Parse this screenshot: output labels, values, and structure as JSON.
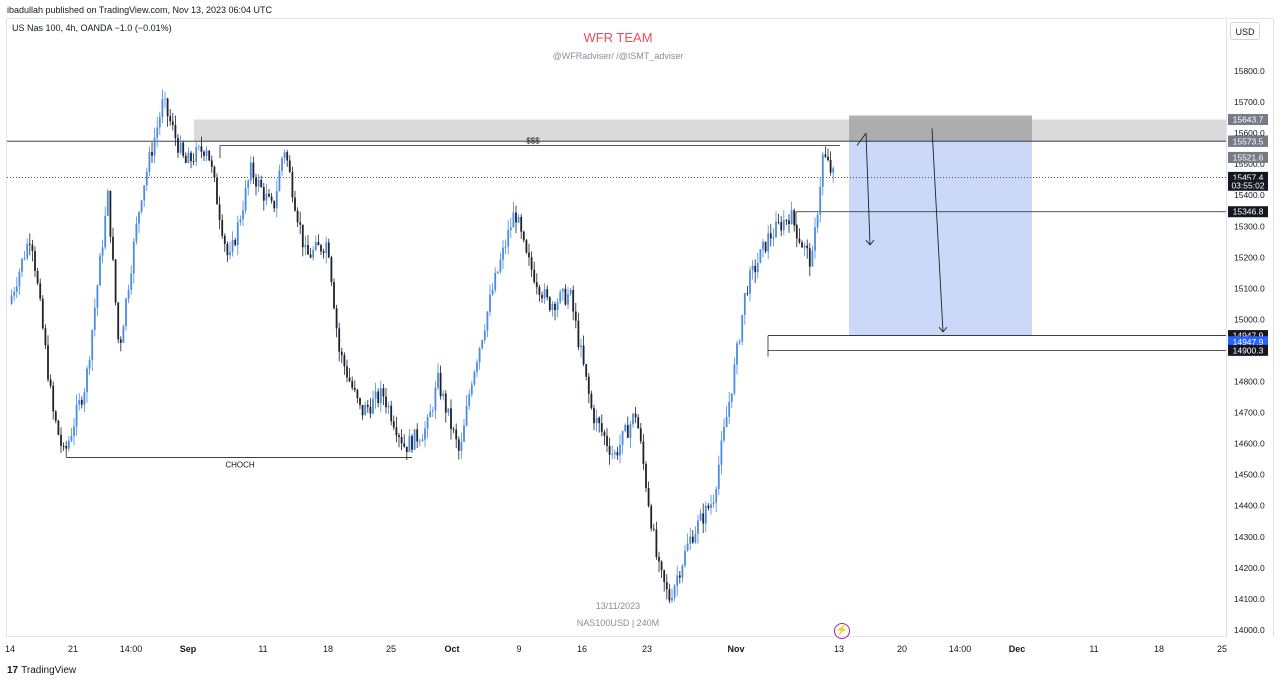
{
  "header": {
    "published": "ibadullah published on TradingView.com, Nov 13, 2023 06:04 UTC",
    "symbol_line": "US Nas 100, 4h, OANDA  −1.0 (−0.01%)"
  },
  "currency_button": "USD",
  "watermark": {
    "title": "WFR TEAM",
    "subtitle": "@WFRadviser/ /@ISMT_adviser",
    "date": "13/11/2023",
    "symbol": "NAS100USD | 240M"
  },
  "footer": {
    "brand": "TradingView",
    "logo_mark": "17"
  },
  "colors": {
    "bull": "#4a8be4",
    "bear": "#1e222d",
    "zone": "#c9d6f8",
    "supply": "#d4d4d4",
    "title": "#ea4d5c"
  },
  "chart_data": {
    "type": "candlestick",
    "timeframe": "4h",
    "ylim": [
      13960,
      15890
    ],
    "y_ticks": [
      15800,
      15700,
      15600,
      15500,
      15400,
      15300,
      15200,
      15100,
      15000,
      14900,
      14800,
      14700,
      14600,
      14500,
      14400,
      14300,
      14200,
      14100,
      14000
    ],
    "x_ticks": [
      {
        "label": "14",
        "bold": false
      },
      {
        "label": "21",
        "bold": false
      },
      {
        "label": "14:00",
        "bold": false
      },
      {
        "label": "Sep",
        "bold": true
      },
      {
        "label": "11",
        "bold": false
      },
      {
        "label": "18",
        "bold": false
      },
      {
        "label": "25",
        "bold": false
      },
      {
        "label": "Oct",
        "bold": true
      },
      {
        "label": "9",
        "bold": false
      },
      {
        "label": "16",
        "bold": false
      },
      {
        "label": "23",
        "bold": false
      },
      {
        "label": "Nov",
        "bold": true
      },
      {
        "label": "13",
        "bold": false
      },
      {
        "label": "20",
        "bold": false
      },
      {
        "label": "14:00",
        "bold": false
      },
      {
        "label": "Dec",
        "bold": true
      },
      {
        "label": "11",
        "bold": false
      },
      {
        "label": "18",
        "bold": false
      },
      {
        "label": "25",
        "bold": false
      }
    ],
    "price_path": [
      [
        0,
        15050
      ],
      [
        0.02,
        15280
      ],
      [
        0.04,
        14700
      ],
      [
        0.05,
        14560
      ],
      [
        0.07,
        14800
      ],
      [
        0.09,
        15400
      ],
      [
        0.1,
        14900
      ],
      [
        0.12,
        15400
      ],
      [
        0.14,
        15700
      ],
      [
        0.16,
        15500
      ],
      [
        0.18,
        15560
      ],
      [
        0.2,
        15180
      ],
      [
        0.22,
        15480
      ],
      [
        0.24,
        15350
      ],
      [
        0.25,
        15560
      ],
      [
        0.27,
        15200
      ],
      [
        0.29,
        15250
      ],
      [
        0.3,
        14900
      ],
      [
        0.32,
        14700
      ],
      [
        0.34,
        14760
      ],
      [
        0.36,
        14590
      ],
      [
        0.38,
        14650
      ],
      [
        0.39,
        14800
      ],
      [
        0.41,
        14560
      ],
      [
        0.42,
        14800
      ],
      [
        0.44,
        15100
      ],
      [
        0.46,
        15350
      ],
      [
        0.47,
        15200
      ],
      [
        0.49,
        15050
      ],
      [
        0.51,
        15080
      ],
      [
        0.53,
        14700
      ],
      [
        0.55,
        14560
      ],
      [
        0.57,
        14700
      ],
      [
        0.59,
        14200
      ],
      [
        0.6,
        14100
      ],
      [
        0.62,
        14300
      ],
      [
        0.64,
        14420
      ],
      [
        0.66,
        14850
      ],
      [
        0.67,
        15100
      ],
      [
        0.69,
        15260
      ],
      [
        0.71,
        15340
      ],
      [
        0.72,
        15250
      ],
      [
        0.73,
        15180
      ],
      [
        0.74,
        15530
      ],
      [
        0.75,
        15457
      ]
    ],
    "levels": [
      {
        "label": "15643.7",
        "value": 15643.7,
        "style": "gray"
      },
      {
        "label": "15573.9",
        "value": 15573.9,
        "style": "black"
      },
      {
        "label": "15573.5",
        "value": 15573.5,
        "style": "gray"
      },
      {
        "label": "15521.6",
        "value": 15521.6,
        "style": "gray"
      },
      {
        "label": "15457.4",
        "value": 15457.4,
        "style": "black"
      },
      {
        "label": "03:55:02",
        "value": 15432,
        "style": "black"
      },
      {
        "label": "15346.8",
        "value": 15346.8,
        "style": "black"
      },
      {
        "label": "14947.9",
        "value": 14947.9,
        "style": "black"
      },
      {
        "label": "14947.9",
        "value": 14928,
        "style": "blue"
      },
      {
        "label": "14900.3",
        "value": 14900.3,
        "style": "black"
      }
    ],
    "supply_zone": [
      15573.9,
      15643.7
    ],
    "target_zone": [
      14947.9,
      15643.7
    ],
    "annotations": [
      {
        "text": "$$$",
        "value": 15573.5
      },
      {
        "text": "CHOCH",
        "value": 14555
      }
    ]
  }
}
